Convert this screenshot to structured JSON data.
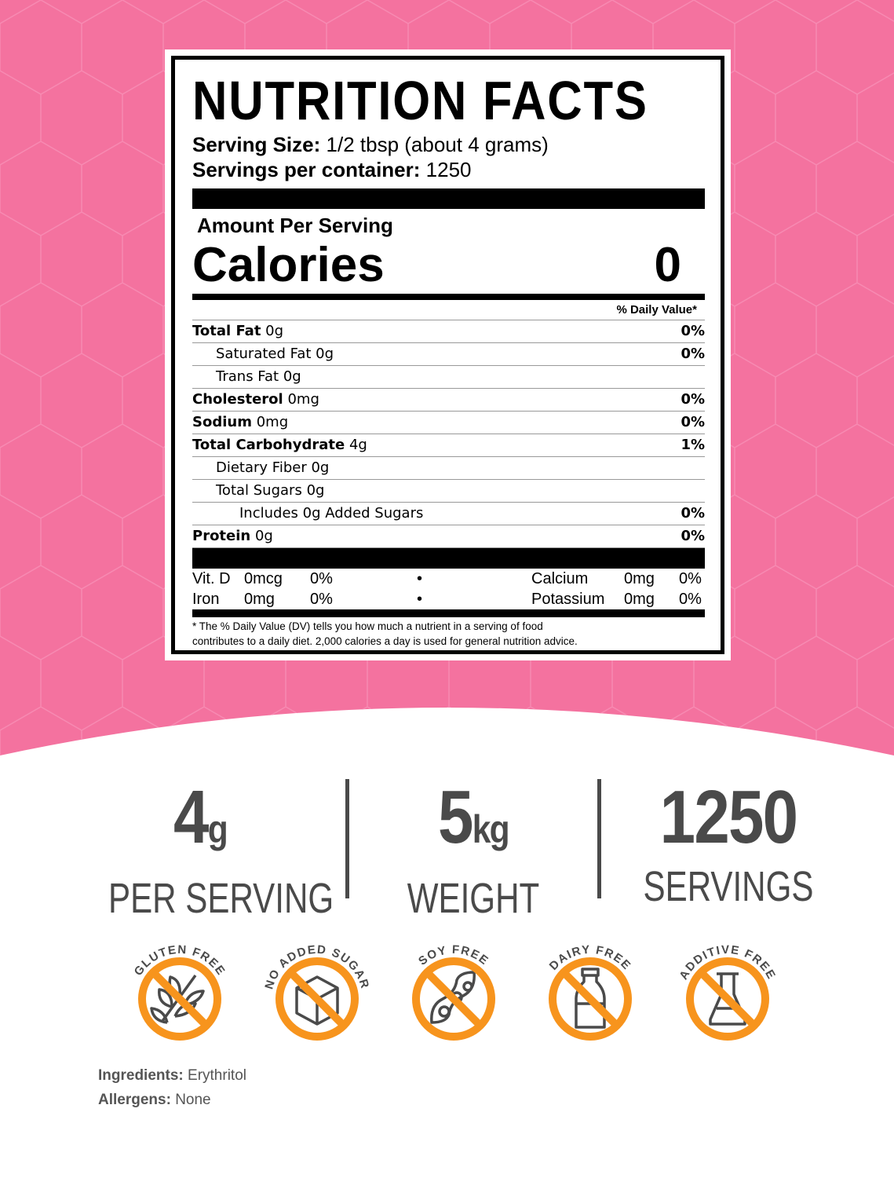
{
  "colors": {
    "background_pink": "#f4729f",
    "accent_orange": "#f7941d",
    "icon_gray": "#4a4a4a"
  },
  "label": {
    "title": "NUTRITION FACTS",
    "serving_size_label": "Serving Size:",
    "serving_size_value": "1/2 tbsp (about 4 grams)",
    "servings_label": "Servings per container:",
    "servings_value": "1250",
    "amount_per_serving": "Amount Per Serving",
    "calories_label": "Calories",
    "calories_value": "0",
    "daily_value_header": "% Daily Value*",
    "rows": [
      {
        "name": "Total Fat",
        "amount": "0g",
        "dv": "0%",
        "bold": true,
        "indent": 0
      },
      {
        "name": "Saturated Fat",
        "amount": "0g",
        "dv": "0%",
        "bold": false,
        "indent": 1
      },
      {
        "name": "Trans Fat",
        "amount": "0g",
        "dv": "",
        "bold": false,
        "indent": 1
      },
      {
        "name": "Cholesterol",
        "amount": "0mg",
        "dv": "0%",
        "bold": true,
        "indent": 0
      },
      {
        "name": "Sodium",
        "amount": "0mg",
        "dv": "0%",
        "bold": true,
        "indent": 0
      },
      {
        "name": "Total Carbohydrate",
        "amount": "4g",
        "dv": "1%",
        "bold": true,
        "indent": 0
      },
      {
        "name": "Dietary Fiber",
        "amount": "0g",
        "dv": "",
        "bold": false,
        "indent": 1
      },
      {
        "name": "Total Sugars",
        "amount": "0g",
        "dv": "",
        "bold": false,
        "indent": 1
      },
      {
        "name": "Includes 0g Added Sugars",
        "amount": "",
        "dv": "0%",
        "bold": false,
        "indent": 2
      },
      {
        "name": "Protein",
        "amount": "0g",
        "dv": "0%",
        "bold": true,
        "indent": 0
      }
    ],
    "vitamins": [
      [
        "Vit. D",
        "0mcg",
        "0%",
        "•",
        "Calcium",
        "0mg",
        "0%"
      ],
      [
        "Iron",
        "0mg",
        "0%",
        "•",
        "Potassium",
        "0mg",
        "0%"
      ]
    ],
    "footnote_line1": "* The % Daily Value (DV) tells you how much a nutrient in a serving of food",
    "footnote_line2": "contributes to a daily diet. 2,000 calories a day is used for general nutrition advice."
  },
  "stats": [
    {
      "value": "4",
      "unit": "g",
      "label": "PER SERVING"
    },
    {
      "value": "5",
      "unit": "kg",
      "label": "WEIGHT"
    },
    {
      "value": "1250",
      "unit": "",
      "label": "SERVINGS"
    }
  ],
  "badges": [
    {
      "label": "GLUTEN FREE",
      "icon": "wheat-icon"
    },
    {
      "label": "NO ADDED SUGAR",
      "icon": "sugar-cube-icon"
    },
    {
      "label": "SOY FREE",
      "icon": "soybean-icon"
    },
    {
      "label": "DAIRY FREE",
      "icon": "milk-bottle-icon"
    },
    {
      "label": "ADDITIVE FREE",
      "icon": "flask-icon"
    }
  ],
  "ingredients": {
    "label": "Ingredients:",
    "value": "Erythritol"
  },
  "allergens": {
    "label": "Allergens:",
    "value": "None"
  }
}
